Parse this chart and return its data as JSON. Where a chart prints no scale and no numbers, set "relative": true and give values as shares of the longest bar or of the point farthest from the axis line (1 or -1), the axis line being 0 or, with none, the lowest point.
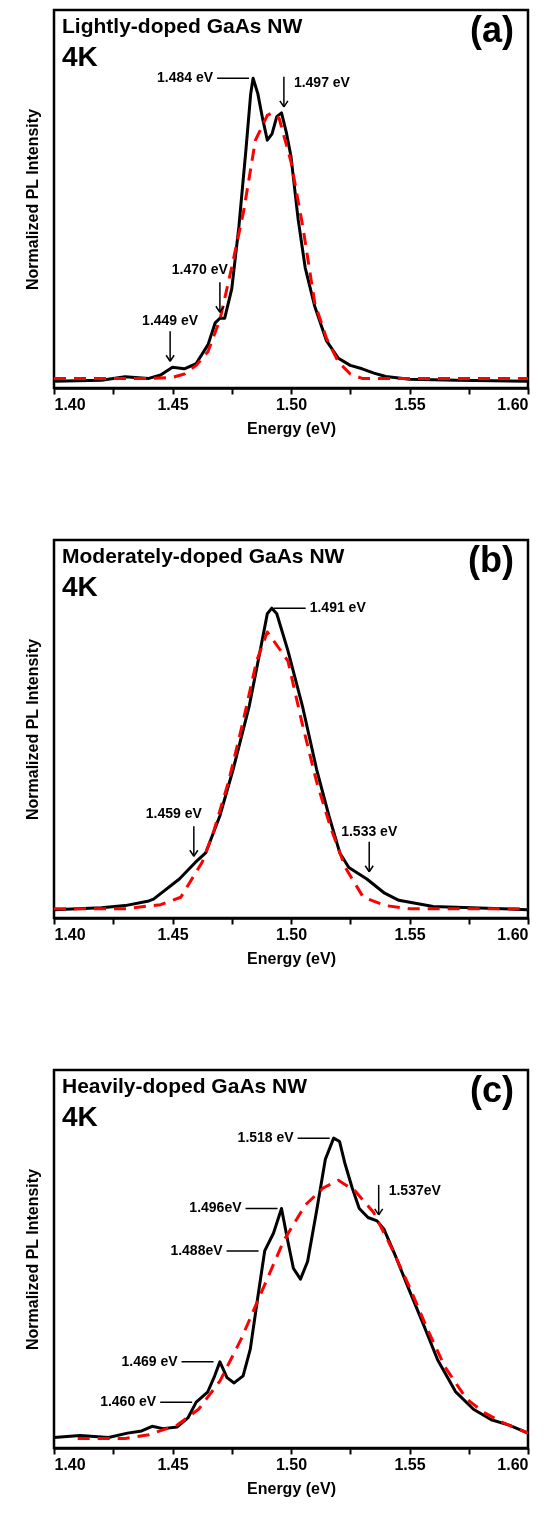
{
  "chart_data": [
    {
      "type": "line",
      "title": "Lightly-doped GaAs NW",
      "xlabel": "Energy (eV)",
      "ylabel": "Normalized PL Intensity",
      "relative": true,
      "xlim": [
        1.4,
        1.6
      ],
      "xticks": [
        {
          "value": 1.4,
          "label": "1.40"
        },
        {
          "value": 1.425,
          "label": null
        },
        {
          "value": 1.45,
          "label": "1.45"
        },
        {
          "value": 1.475,
          "label": null
        },
        {
          "value": 1.5,
          "label": "1.50"
        },
        {
          "value": 1.525,
          "label": null
        },
        {
          "value": 1.55,
          "label": "1.55"
        },
        {
          "value": 1.575,
          "label": null
        },
        {
          "value": 1.6,
          "label": "1.60"
        }
      ],
      "series": [
        {
          "color": "#000000",
          "line_style": "solid",
          "x": [
            1.4,
            1.42,
            1.43,
            1.44,
            1.445,
            1.45,
            1.455,
            1.46,
            1.465,
            1.468,
            1.47,
            1.472,
            1.475,
            1.478,
            1.481,
            1.483,
            1.484,
            1.486,
            1.488,
            1.49,
            1.492,
            1.494,
            1.496,
            1.498,
            1.5,
            1.503,
            1.506,
            1.51,
            1.515,
            1.52,
            1.525,
            1.53,
            1.535,
            1.54,
            1.55,
            1.57,
            1.6
          ],
          "values": [
            0.022,
            0.025,
            0.036,
            0.031,
            0.042,
            0.067,
            0.062,
            0.079,
            0.14,
            0.21,
            0.225,
            0.225,
            0.32,
            0.52,
            0.77,
            0.95,
            1.0,
            0.95,
            0.87,
            0.8,
            0.82,
            0.876,
            0.888,
            0.826,
            0.747,
            0.545,
            0.388,
            0.264,
            0.152,
            0.096,
            0.073,
            0.062,
            0.048,
            0.037,
            0.028,
            0.025,
            0.022
          ]
        },
        {
          "color": "#ff0000",
          "line_style": "dashed",
          "x": [
            1.4,
            1.44,
            1.45,
            1.455,
            1.46,
            1.465,
            1.47,
            1.475,
            1.48,
            1.485,
            1.49,
            1.492,
            1.495,
            1.5,
            1.505,
            1.51,
            1.515,
            1.52,
            1.525,
            1.53,
            1.6
          ],
          "values": [
            0.031,
            0.031,
            0.034,
            0.045,
            0.073,
            0.118,
            0.22,
            0.39,
            0.57,
            0.8,
            0.88,
            0.888,
            0.87,
            0.73,
            0.52,
            0.275,
            0.16,
            0.084,
            0.045,
            0.031,
            0.031
          ]
        }
      ],
      "annotations": [
        "4K",
        "(a)",
        {
          "text": "1.484 eV",
          "x": 1.484,
          "y": 1.0
        },
        {
          "text": "1.497 eV",
          "x": 1.497,
          "y": 0.888
        },
        {
          "text": "1.470 eV",
          "x": 1.47,
          "y": 0.225
        },
        {
          "text": "1.449 eV",
          "x": 1.449,
          "y": 0.067
        }
      ]
    },
    {
      "type": "line",
      "title": "Moderately-doped GaAs NW",
      "xlabel": "Energy (eV)",
      "ylabel": "Normalized PL Intensity",
      "relative": true,
      "xlim": [
        1.4,
        1.6
      ],
      "xticks": [
        {
          "value": 1.4,
          "label": "1.40"
        },
        {
          "value": 1.425,
          "label": null
        },
        {
          "value": 1.45,
          "label": "1.45"
        },
        {
          "value": 1.475,
          "label": null
        },
        {
          "value": 1.5,
          "label": "1.50"
        },
        {
          "value": 1.525,
          "label": null
        },
        {
          "value": 1.55,
          "label": "1.55"
        },
        {
          "value": 1.575,
          "label": null
        },
        {
          "value": 1.6,
          "label": "1.60"
        }
      ],
      "series": [
        {
          "color": "#000000",
          "line_style": "solid",
          "x": [
            1.4,
            1.42,
            1.43,
            1.44,
            1.442,
            1.4529,
            1.4597,
            1.464,
            1.47,
            1.4756,
            1.4824,
            1.487,
            1.49,
            1.4919,
            1.494,
            1.4987,
            1.5048,
            1.5108,
            1.516,
            1.5206,
            1.5244,
            1.532,
            1.5395,
            1.5455,
            1.56,
            1.6
          ],
          "values": [
            0.027,
            0.033,
            0.04,
            0.055,
            0.061,
            0.126,
            0.18,
            0.21,
            0.33,
            0.48,
            0.685,
            0.863,
            0.982,
            1.0,
            0.982,
            0.863,
            0.685,
            0.48,
            0.33,
            0.21,
            0.163,
            0.126,
            0.08,
            0.057,
            0.037,
            0.027
          ]
        },
        {
          "color": "#ff0000",
          "line_style": "dashed",
          "x": [
            1.4,
            1.43,
            1.445,
            1.4535,
            1.4625,
            1.467,
            1.4735,
            1.4795,
            1.4855,
            1.49,
            1.4987,
            1.5048,
            1.5108,
            1.5168,
            1.5229,
            1.5305,
            1.54,
            1.55,
            1.6
          ],
          "values": [
            0.03,
            0.03,
            0.043,
            0.067,
            0.18,
            0.27,
            0.436,
            0.625,
            0.83,
            0.923,
            0.83,
            0.625,
            0.44,
            0.29,
            0.163,
            0.067,
            0.04,
            0.03,
            0.03
          ]
        }
      ],
      "annotations": [
        "4K",
        "(b)",
        {
          "text": "1.491 eV",
          "x": 1.491,
          "y": 1.0
        },
        {
          "text": "1.459 eV",
          "x": 1.459,
          "y": 0.18
        },
        {
          "text": "1.533 eV",
          "x": 1.533,
          "y": 0.13
        }
      ]
    },
    {
      "type": "line",
      "title": "Heavily-doped GaAs NW",
      "xlabel": "Energy (eV)",
      "ylabel": "Normalized PL Intensity",
      "relative": true,
      "xlim": [
        1.4,
        1.6
      ],
      "xticks": [
        {
          "value": 1.4,
          "label": "1.40"
        },
        {
          "value": 1.425,
          "label": null
        },
        {
          "value": 1.45,
          "label": "1.45"
        },
        {
          "value": 1.475,
          "label": null
        },
        {
          "value": 1.5,
          "label": "1.50"
        },
        {
          "value": 1.525,
          "label": null
        },
        {
          "value": 1.55,
          "label": "1.55"
        },
        {
          "value": 1.575,
          "label": null
        },
        {
          "value": 1.6,
          "label": "1.60"
        }
      ],
      "series": [
        {
          "color": "#000000",
          "line_style": "solid",
          "x": [
            1.4,
            1.411,
            1.423,
            1.431,
            1.437,
            1.4414,
            1.446,
            1.452,
            1.4565,
            1.46,
            1.4648,
            1.4678,
            1.47,
            1.473,
            1.476,
            1.4798,
            1.4828,
            1.4858,
            1.4889,
            1.4926,
            1.496,
            1.4986,
            1.501,
            1.504,
            1.507,
            1.5107,
            1.5145,
            1.518,
            1.5205,
            1.5227,
            1.5258,
            1.5288,
            1.5325,
            1.5363,
            1.5393,
            1.5438,
            1.5498,
            1.5559,
            1.5619,
            1.5694,
            1.577,
            1.5845,
            1.592,
            1.6
          ],
          "values": [
            0.034,
            0.04,
            0.034,
            0.048,
            0.055,
            0.07,
            0.0625,
            0.068,
            0.097,
            0.148,
            0.18,
            0.233,
            0.278,
            0.227,
            0.21,
            0.233,
            0.318,
            0.477,
            0.636,
            0.693,
            0.773,
            0.67,
            0.58,
            0.545,
            0.602,
            0.761,
            0.932,
            1.0,
            0.989,
            0.92,
            0.84,
            0.773,
            0.744,
            0.733,
            0.705,
            0.625,
            0.511,
            0.398,
            0.284,
            0.182,
            0.125,
            0.091,
            0.074,
            0.048
          ]
        },
        {
          "color": "#ff0000",
          "line_style": "dashed",
          "x": [
            1.41,
            1.43,
            1.44,
            1.452,
            1.461,
            1.47,
            1.479,
            1.488,
            1.497,
            1.506,
            1.5137,
            1.52,
            1.527,
            1.5348,
            1.5423,
            1.5498,
            1.5574,
            1.565,
            1.574,
            1.5815,
            1.59,
            1.6
          ],
          "values": [
            0.031,
            0.031,
            0.043,
            0.074,
            0.125,
            0.216,
            0.352,
            0.511,
            0.67,
            0.784,
            0.84,
            0.864,
            0.83,
            0.761,
            0.648,
            0.523,
            0.386,
            0.261,
            0.159,
            0.114,
            0.08,
            0.048
          ]
        }
      ],
      "annotations": [
        "4K",
        "(c)",
        {
          "text": "1.518 eV",
          "x": 1.518,
          "y": 1.0
        },
        {
          "text": "1.537eV",
          "x": 1.537,
          "y": 0.733
        },
        {
          "text": "1.496eV",
          "x": 1.496,
          "y": 0.773
        },
        {
          "text": "1.488eV",
          "x": 1.488,
          "y": 0.636
        },
        {
          "text": "1.469 eV",
          "x": 1.469,
          "y": 0.278
        },
        {
          "text": "1.460 eV",
          "x": 1.46,
          "y": 0.148
        }
      ]
    }
  ]
}
